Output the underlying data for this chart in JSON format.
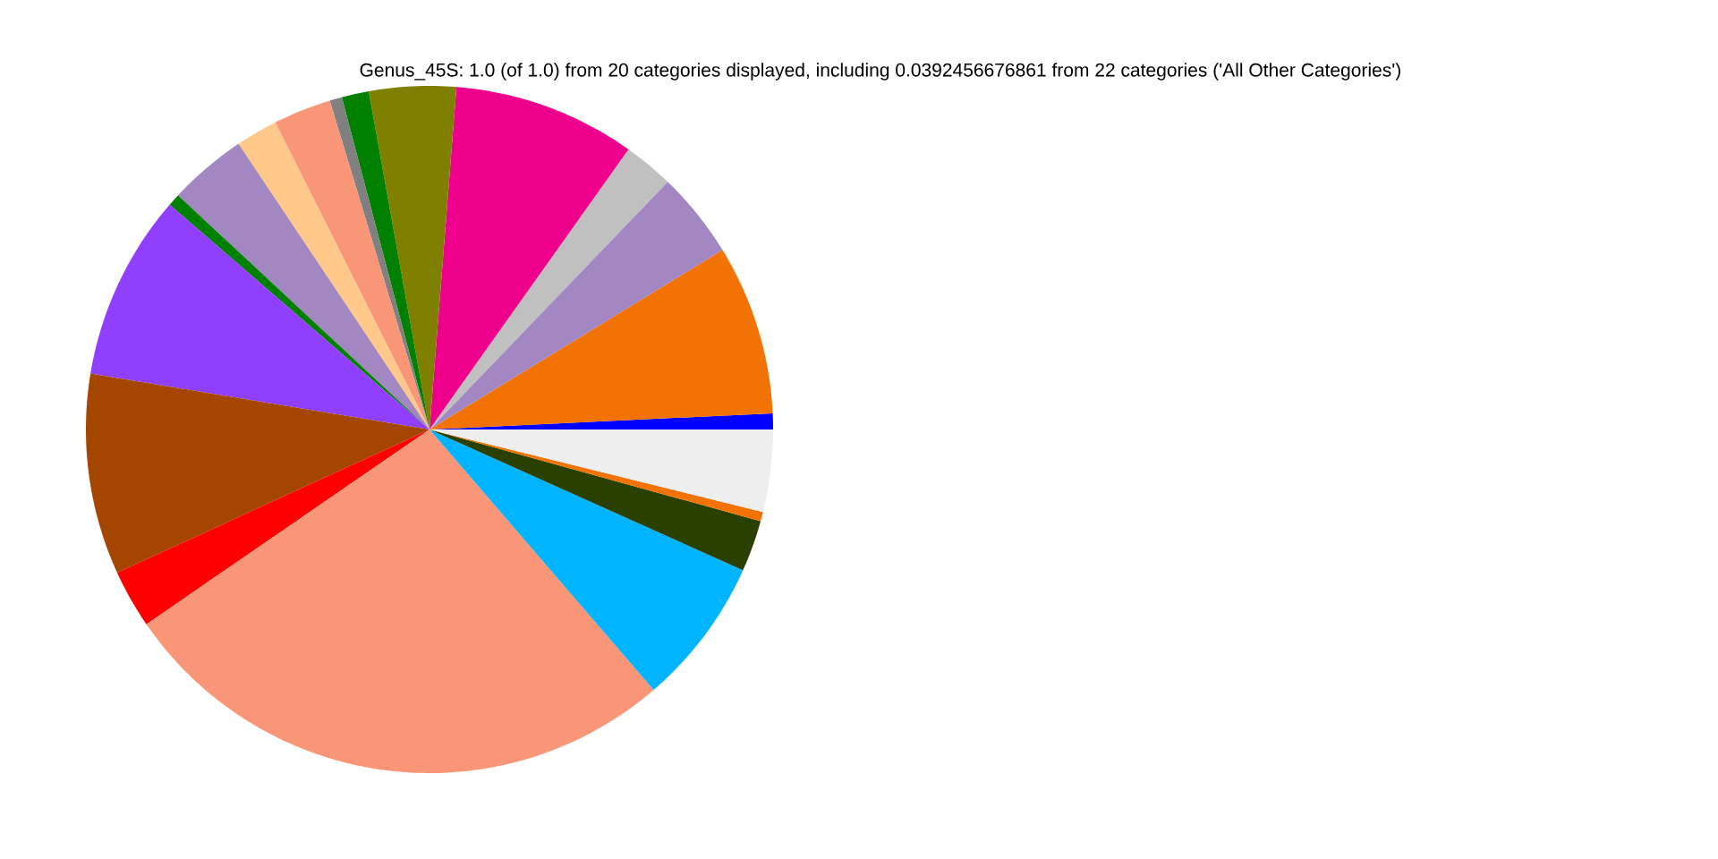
{
  "chart_data": {
    "type": "pie",
    "title": "Genus_45S: 1.0 (of 1.0) from 20 categories displayed, including 0.0392456676861 from 22 categories ('All Other Categories')",
    "categories": [
      null,
      null,
      null,
      null,
      null,
      null,
      null,
      null,
      null,
      null,
      null,
      null,
      null,
      null,
      null,
      null,
      null,
      null,
      null,
      null
    ],
    "values": [
      0.75,
      8.0,
      4.06,
      2.36,
      8.58,
      4.08,
      1.28,
      0.58,
      2.72,
      1.97,
      3.69,
      0.58,
      8.75,
      9.44,
      2.75,
      26.72,
      6.97,
      2.42,
      0.44,
      3.86
    ],
    "colors": [
      "#0000ff",
      "#f27304",
      "#a387c2",
      "#c0c0c0",
      "#ee008c",
      "#808000",
      "#008000",
      "#808080",
      "#f89677",
      "#fec88a",
      "#a387c2",
      "#008000",
      "#913ffe",
      "#a54600",
      "#ff0000",
      "#f89677",
      "#00b4ff",
      "#2a4000",
      "#f27304",
      "#eeeeee"
    ]
  }
}
